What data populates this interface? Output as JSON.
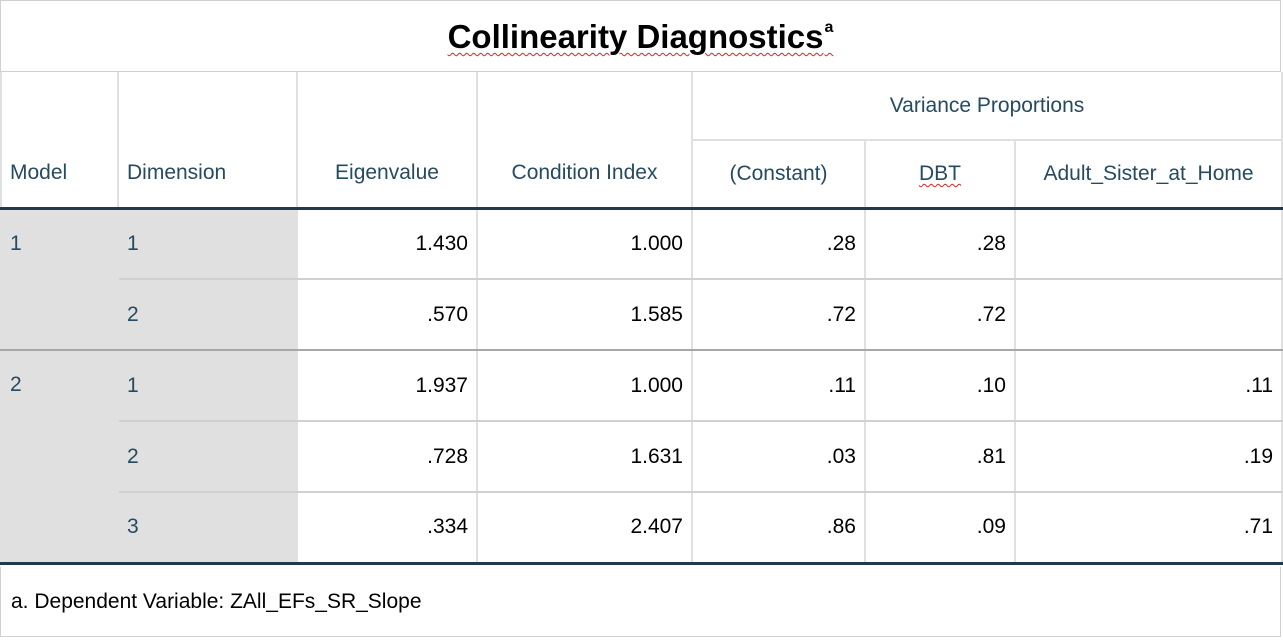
{
  "title": "Collinearity Diagnostics",
  "title_superscript": "a",
  "headers": {
    "model": "Model",
    "dimension": "Dimension",
    "eigenvalue": "Eigenvalue",
    "condition_index": "Condition Index",
    "group": "Variance Proportions",
    "constant": "(Constant)",
    "dbt": "DBT",
    "adult_sister": "Adult_Sister_at_Home"
  },
  "rows": [
    {
      "model": "1",
      "dimension": "1",
      "eigenvalue": "1.430",
      "condition_index": "1.000",
      "constant": ".28",
      "dbt": ".28",
      "adult_sister": ""
    },
    {
      "model": "",
      "dimension": "2",
      "eigenvalue": ".570",
      "condition_index": "1.585",
      "constant": ".72",
      "dbt": ".72",
      "adult_sister": ""
    },
    {
      "model": "2",
      "dimension": "1",
      "eigenvalue": "1.937",
      "condition_index": "1.000",
      "constant": ".11",
      "dbt": ".10",
      "adult_sister": ".11"
    },
    {
      "model": "",
      "dimension": "2",
      "eigenvalue": ".728",
      "condition_index": "1.631",
      "constant": ".03",
      "dbt": ".81",
      "adult_sister": ".19"
    },
    {
      "model": "",
      "dimension": "3",
      "eigenvalue": ".334",
      "condition_index": "2.407",
      "constant": ".86",
      "dbt": ".09",
      "adult_sister": ".71"
    }
  ],
  "footnote": "a. Dependent Variable: ZAll_EFs_SR_Slope"
}
